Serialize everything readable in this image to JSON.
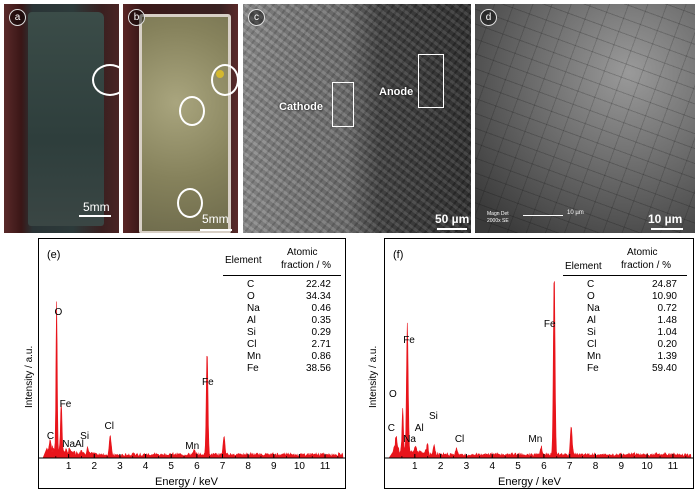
{
  "panels": {
    "a": {
      "label": "a",
      "scale": "5mm"
    },
    "b": {
      "label": "b",
      "scale": "5mm"
    },
    "c": {
      "label": "c",
      "scale": "50 µm",
      "cathode": "Cathode",
      "anode": "Anode"
    },
    "d": {
      "label": "d",
      "scale": "10 µm",
      "meta1": "Magn   Det",
      "meta2": "2000x   SE",
      "meta_scale": "10 µm"
    }
  },
  "spectra": [
    {
      "label": "(e)",
      "ylabel": "Intensity / a.u.",
      "xlabel": "Energy / keV",
      "ticks": [
        "1",
        "2",
        "3",
        "4",
        "5",
        "6",
        "7",
        "8",
        "9",
        "10",
        "11"
      ],
      "table": {
        "col1": "Element",
        "col2a": "Atomic",
        "col2b": "fraction / %",
        "rows": [
          [
            "C",
            "22.42"
          ],
          [
            "O",
            "34.34"
          ],
          [
            "Na",
            "0.46"
          ],
          [
            "Al",
            "0.35"
          ],
          [
            "Si",
            "0.29"
          ],
          [
            "Cl",
            "2.71"
          ],
          [
            "Mn",
            "0.86"
          ],
          [
            "Fe",
            "38.56"
          ]
        ]
      },
      "peak_labels": [
        "O",
        "Fe",
        "Si",
        "Cl",
        "C",
        "NaAl",
        "Mn",
        "Fe"
      ]
    },
    {
      "label": "(f)",
      "ylabel": "Intensity / a.u.",
      "xlabel": "Energy / keV",
      "ticks": [
        "1",
        "2",
        "3",
        "4",
        "5",
        "6",
        "7",
        "8",
        "9",
        "10",
        "11"
      ],
      "table": {
        "col1": "Element",
        "col2a": "Atomic",
        "col2b": "fraction / %",
        "rows": [
          [
            "C",
            "24.87"
          ],
          [
            "O",
            "10.90"
          ],
          [
            "Na",
            "0.72"
          ],
          [
            "Al",
            "1.48"
          ],
          [
            "Si",
            "1.04"
          ],
          [
            "Cl",
            "0.20"
          ],
          [
            "Mn",
            "1.39"
          ],
          [
            "Fe",
            "59.40"
          ]
        ]
      },
      "peak_labels": [
        "Fe",
        "O",
        "Si",
        "Al",
        "C",
        "Na",
        "Cl",
        "Mn",
        "Fe"
      ]
    }
  ],
  "colors": {
    "spectrum": "#e8141b",
    "frame": "#000000"
  }
}
